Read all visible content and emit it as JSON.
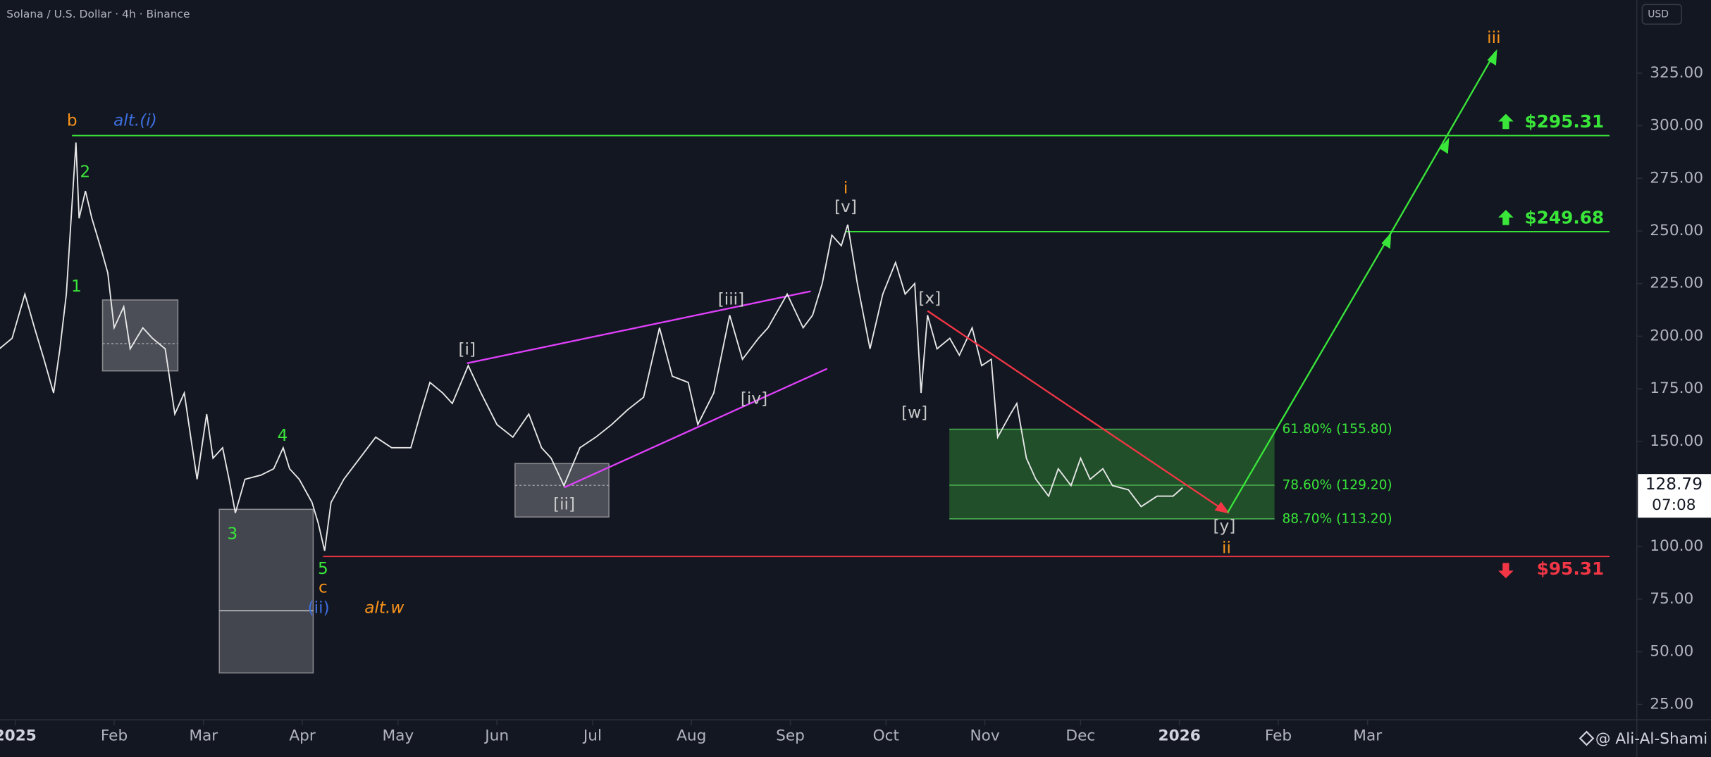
{
  "chart_data": {
    "type": "line",
    "title": "Solana / U.S. Dollar · 4h · Binance",
    "currency": "USD",
    "watermark": "@ Ali-Al-Shami",
    "color": "#e8e8e8",
    "x": [
      -5,
      -1,
      3,
      6,
      9,
      12,
      14,
      16,
      19,
      20,
      22,
      24,
      27,
      29,
      31,
      34,
      36,
      40,
      43,
      47,
      48,
      50,
      53,
      55,
      57,
      60,
      62,
      65,
      67,
      69,
      72,
      77,
      81,
      84,
      86,
      89,
      93,
      95,
      97,
      99,
      103,
      108,
      113,
      118,
      124,
      127,
      130,
      134,
      137,
      142,
      146,
      151,
      156,
      161,
      165,
      168,
      172,
      177,
      182,
      187,
      192,
      197,
      202,
      206,
      211,
      214,
      219,
      224,
      228,
      233,
      236,
      242,
      247,
      250,
      253,
      256,
      259,
      261,
      264,
      268,
      272,
      276,
      279,
      282,
      284,
      286,
      289,
      293,
      296,
      300,
      303,
      306,
      308,
      312,
      314,
      317,
      320,
      324,
      327,
      331,
      334,
      337,
      341,
      344,
      349,
      353,
      358,
      363,
      366
    ],
    "values": [
      194,
      199,
      220,
      204,
      189,
      173,
      194,
      220,
      292,
      256,
      269,
      256,
      241,
      230,
      204,
      214,
      194,
      204,
      199,
      194,
      184,
      163,
      173,
      152,
      132,
      163,
      142,
      147,
      132,
      116,
      132,
      134,
      137,
      147,
      137,
      132,
      121,
      111,
      98,
      121,
      132,
      142,
      152,
      147,
      147,
      163,
      178,
      173,
      168,
      186,
      173,
      158,
      152,
      163,
      147,
      142,
      129,
      147,
      152,
      158,
      165,
      171,
      204,
      181,
      178,
      158,
      173,
      210,
      189,
      199,
      204,
      220,
      204,
      210,
      225,
      248,
      243,
      253,
      225,
      194,
      220,
      235,
      220,
      225,
      173,
      210,
      194,
      199,
      191,
      204,
      186,
      189,
      152,
      163,
      168,
      142,
      132,
      124,
      137,
      129,
      142,
      132,
      137,
      129,
      127,
      119,
      124,
      124,
      128
    ],
    "xlim": [
      -4.8,
      508.4
    ],
    "ylim": [
      17.7,
      359.7
    ],
    "xticks": [
      {
        "value": 0,
        "label": "2025"
      },
      {
        "value": 31,
        "label": "Feb"
      },
      {
        "value": 59,
        "label": "Mar"
      },
      {
        "value": 90,
        "label": "Apr"
      },
      {
        "value": 120,
        "label": "May"
      },
      {
        "value": 151,
        "label": "Jun"
      },
      {
        "value": 181,
        "label": "Jul"
      },
      {
        "value": 212,
        "label": "Aug"
      },
      {
        "value": 243,
        "label": "Sep"
      },
      {
        "value": 273,
        "label": "Oct"
      },
      {
        "value": 304,
        "label": "Nov"
      },
      {
        "value": 334,
        "label": "Dec"
      },
      {
        "value": 365,
        "label": "2026"
      },
      {
        "value": 396,
        "label": "Feb"
      },
      {
        "value": 424,
        "label": "Mar"
      }
    ],
    "yticks": [
      {
        "value": 25,
        "label": "25.00"
      },
      {
        "value": 50,
        "label": "50.00"
      },
      {
        "value": 75,
        "label": "75.00"
      },
      {
        "value": 100,
        "label": "100.00"
      },
      {
        "value": 125,
        "label": "125.00"
      },
      {
        "value": 150,
        "label": "150.00"
      },
      {
        "value": 175,
        "label": "175.00"
      },
      {
        "value": 200,
        "label": "200.00"
      },
      {
        "value": 225,
        "label": "225.00"
      },
      {
        "value": 250,
        "label": "250.00"
      },
      {
        "value": 275,
        "label": "275.00"
      },
      {
        "value": 300,
        "label": "300.00"
      },
      {
        "value": 325,
        "label": "325.00"
      }
    ],
    "grid": false,
    "levels": [
      {
        "value": 295.31,
        "label": "$295.31",
        "color": "#39e639"
      },
      {
        "value": 249.68,
        "label": "$249.68",
        "color": "#39e639"
      },
      {
        "value": 95.31,
        "label": "$95.31",
        "color": "#f23645"
      }
    ],
    "fib": [
      {
        "value": 155.8,
        "label": "61.80% (155.80)"
      },
      {
        "value": 129.2,
        "label": "78.60% (129.20)"
      },
      {
        "value": 113.2,
        "label": "88.70% (113.20)"
      }
    ],
    "last_price": {
      "value": 128.79,
      "label": "128.79",
      "countdown": "07:08"
    },
    "wave_labels": [
      {
        "text": "b",
        "color": "#f7931a"
      },
      {
        "text": "alt.(i)",
        "color": "#3d6fe0"
      },
      {
        "text": "2",
        "color": "#39e639"
      },
      {
        "text": "1",
        "color": "#39e639"
      },
      {
        "text": "3",
        "color": "#39e639"
      },
      {
        "text": "4",
        "color": "#39e639"
      },
      {
        "text": "5",
        "color": "#39e639"
      },
      {
        "text": "c",
        "color": "#f7931a"
      },
      {
        "text": "(ii)",
        "color": "#3d6fe0"
      },
      {
        "text": "alt.w",
        "color": "#f7931a"
      },
      {
        "text": "[i]",
        "color": "#c8c8c8"
      },
      {
        "text": "[ii]",
        "color": "#c8c8c8"
      },
      {
        "text": "[iii]",
        "color": "#c8c8c8"
      },
      {
        "text": "[iv]",
        "color": "#c8c8c8"
      },
      {
        "text": "i",
        "color": "#f7931a"
      },
      {
        "text": "[v]",
        "color": "#c8c8c8"
      },
      {
        "text": "[x]",
        "color": "#c8c8c8"
      },
      {
        "text": "[w]",
        "color": "#c8c8c8"
      },
      {
        "text": "[y]",
        "color": "#c8c8c8"
      },
      {
        "text": "ii",
        "color": "#f7931a"
      },
      {
        "text": "iii",
        "color": "#f7931a"
      }
    ]
  }
}
